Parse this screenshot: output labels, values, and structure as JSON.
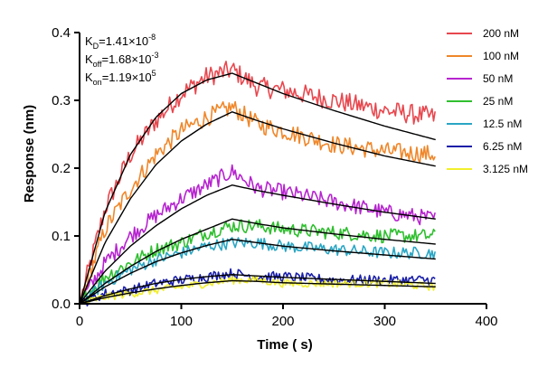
{
  "chart_data": {
    "type": "line",
    "title": "",
    "xlabel": "Time ( s)",
    "ylabel": "Response (nm)",
    "xlim": [
      0,
      400
    ],
    "ylim": [
      0,
      0.4
    ],
    "x_ticks": [
      0,
      100,
      200,
      300,
      400
    ],
    "x_tick_labels": [
      "0",
      "100",
      "200",
      "300",
      "400"
    ],
    "y_ticks": [
      0.0,
      0.1,
      0.2,
      0.3,
      0.4
    ],
    "y_tick_labels": [
      "0.0",
      "0.1",
      "0.2",
      "0.3",
      "0.4"
    ],
    "grid": false,
    "legend_position": "right",
    "annotations": [
      {
        "base": "K",
        "sub": "D",
        "text": "=1.41×10",
        "sup": "-8"
      },
      {
        "base": "K",
        "sub": "off",
        "text": "=1.68×10",
        "sup": "-3"
      },
      {
        "base": "K",
        "sub": "on",
        "text": "=1.19×10",
        "sup": "5"
      }
    ],
    "association_end_time": 150,
    "end_time": 350,
    "fit_line_color": "#000000",
    "series": [
      {
        "name": "200 nM",
        "color": "#e8474e",
        "x": [
          0,
          25,
          50,
          75,
          100,
          125,
          150,
          175,
          200,
          250,
          300,
          350
        ],
        "values": [
          0.0,
          0.14,
          0.22,
          0.27,
          0.31,
          0.335,
          0.345,
          0.32,
          0.315,
          0.3,
          0.285,
          0.275
        ],
        "fit": [
          0.0,
          0.135,
          0.22,
          0.275,
          0.31,
          0.33,
          0.34,
          0.325,
          0.31,
          0.285,
          0.262,
          0.242
        ]
      },
      {
        "name": "100 nM",
        "color": "#f0872a",
        "x": [
          0,
          25,
          50,
          75,
          100,
          125,
          150,
          175,
          200,
          250,
          300,
          350
        ],
        "values": [
          0.0,
          0.11,
          0.17,
          0.22,
          0.255,
          0.275,
          0.29,
          0.265,
          0.255,
          0.235,
          0.225,
          0.22
        ],
        "fit": [
          0.0,
          0.09,
          0.155,
          0.205,
          0.24,
          0.265,
          0.283,
          0.27,
          0.258,
          0.237,
          0.218,
          0.203
        ]
      },
      {
        "name": "50 nM",
        "color": "#b624cf",
        "x": [
          0,
          25,
          50,
          75,
          100,
          125,
          150,
          175,
          200,
          250,
          300,
          350
        ],
        "values": [
          0.0,
          0.06,
          0.1,
          0.13,
          0.155,
          0.175,
          0.195,
          0.17,
          0.165,
          0.15,
          0.135,
          0.125
        ],
        "fit": [
          0.0,
          0.048,
          0.085,
          0.115,
          0.14,
          0.16,
          0.175,
          0.167,
          0.16,
          0.147,
          0.135,
          0.125
        ]
      },
      {
        "name": "25 nM",
        "color": "#2fbf2f",
        "x": [
          0,
          25,
          50,
          75,
          100,
          125,
          150,
          175,
          200,
          250,
          300,
          350
        ],
        "values": [
          0.0,
          0.04,
          0.06,
          0.08,
          0.09,
          0.105,
          0.115,
          0.115,
          0.11,
          0.105,
          0.1,
          0.1
        ],
        "fit": [
          0.0,
          0.03,
          0.055,
          0.077,
          0.095,
          0.11,
          0.125,
          0.118,
          0.112,
          0.103,
          0.095,
          0.088
        ]
      },
      {
        "name": "12.5 nM",
        "color": "#2aa6c4",
        "x": [
          0,
          25,
          50,
          75,
          100,
          125,
          150,
          175,
          200,
          250,
          300,
          350
        ],
        "values": [
          0.0,
          0.03,
          0.05,
          0.065,
          0.075,
          0.085,
          0.09,
          0.09,
          0.085,
          0.08,
          0.075,
          0.075
        ],
        "fit": [
          0.0,
          0.025,
          0.045,
          0.062,
          0.075,
          0.086,
          0.095,
          0.09,
          0.085,
          0.078,
          0.072,
          0.066
        ]
      },
      {
        "name": "6.25 nM",
        "color": "#1a1fa8",
        "x": [
          0,
          25,
          50,
          75,
          100,
          125,
          150,
          175,
          200,
          250,
          300,
          350
        ],
        "values": [
          0.0,
          0.015,
          0.02,
          0.03,
          0.035,
          0.04,
          0.045,
          0.04,
          0.04,
          0.035,
          0.035,
          0.035
        ],
        "fit": [
          0.0,
          0.012,
          0.022,
          0.03,
          0.036,
          0.04,
          0.043,
          0.041,
          0.039,
          0.036,
          0.033,
          0.03
        ]
      },
      {
        "name": "3.125 nM",
        "color": "#f2ef2c",
        "x": [
          0,
          25,
          50,
          75,
          100,
          125,
          150,
          175,
          200,
          250,
          300,
          350
        ],
        "values": [
          0.0,
          0.01,
          0.015,
          0.02,
          0.025,
          0.03,
          0.035,
          0.035,
          0.03,
          0.03,
          0.03,
          0.025
        ],
        "fit": [
          0.0,
          0.009,
          0.016,
          0.022,
          0.027,
          0.031,
          0.034,
          0.033,
          0.031,
          0.029,
          0.027,
          0.025
        ]
      }
    ]
  }
}
